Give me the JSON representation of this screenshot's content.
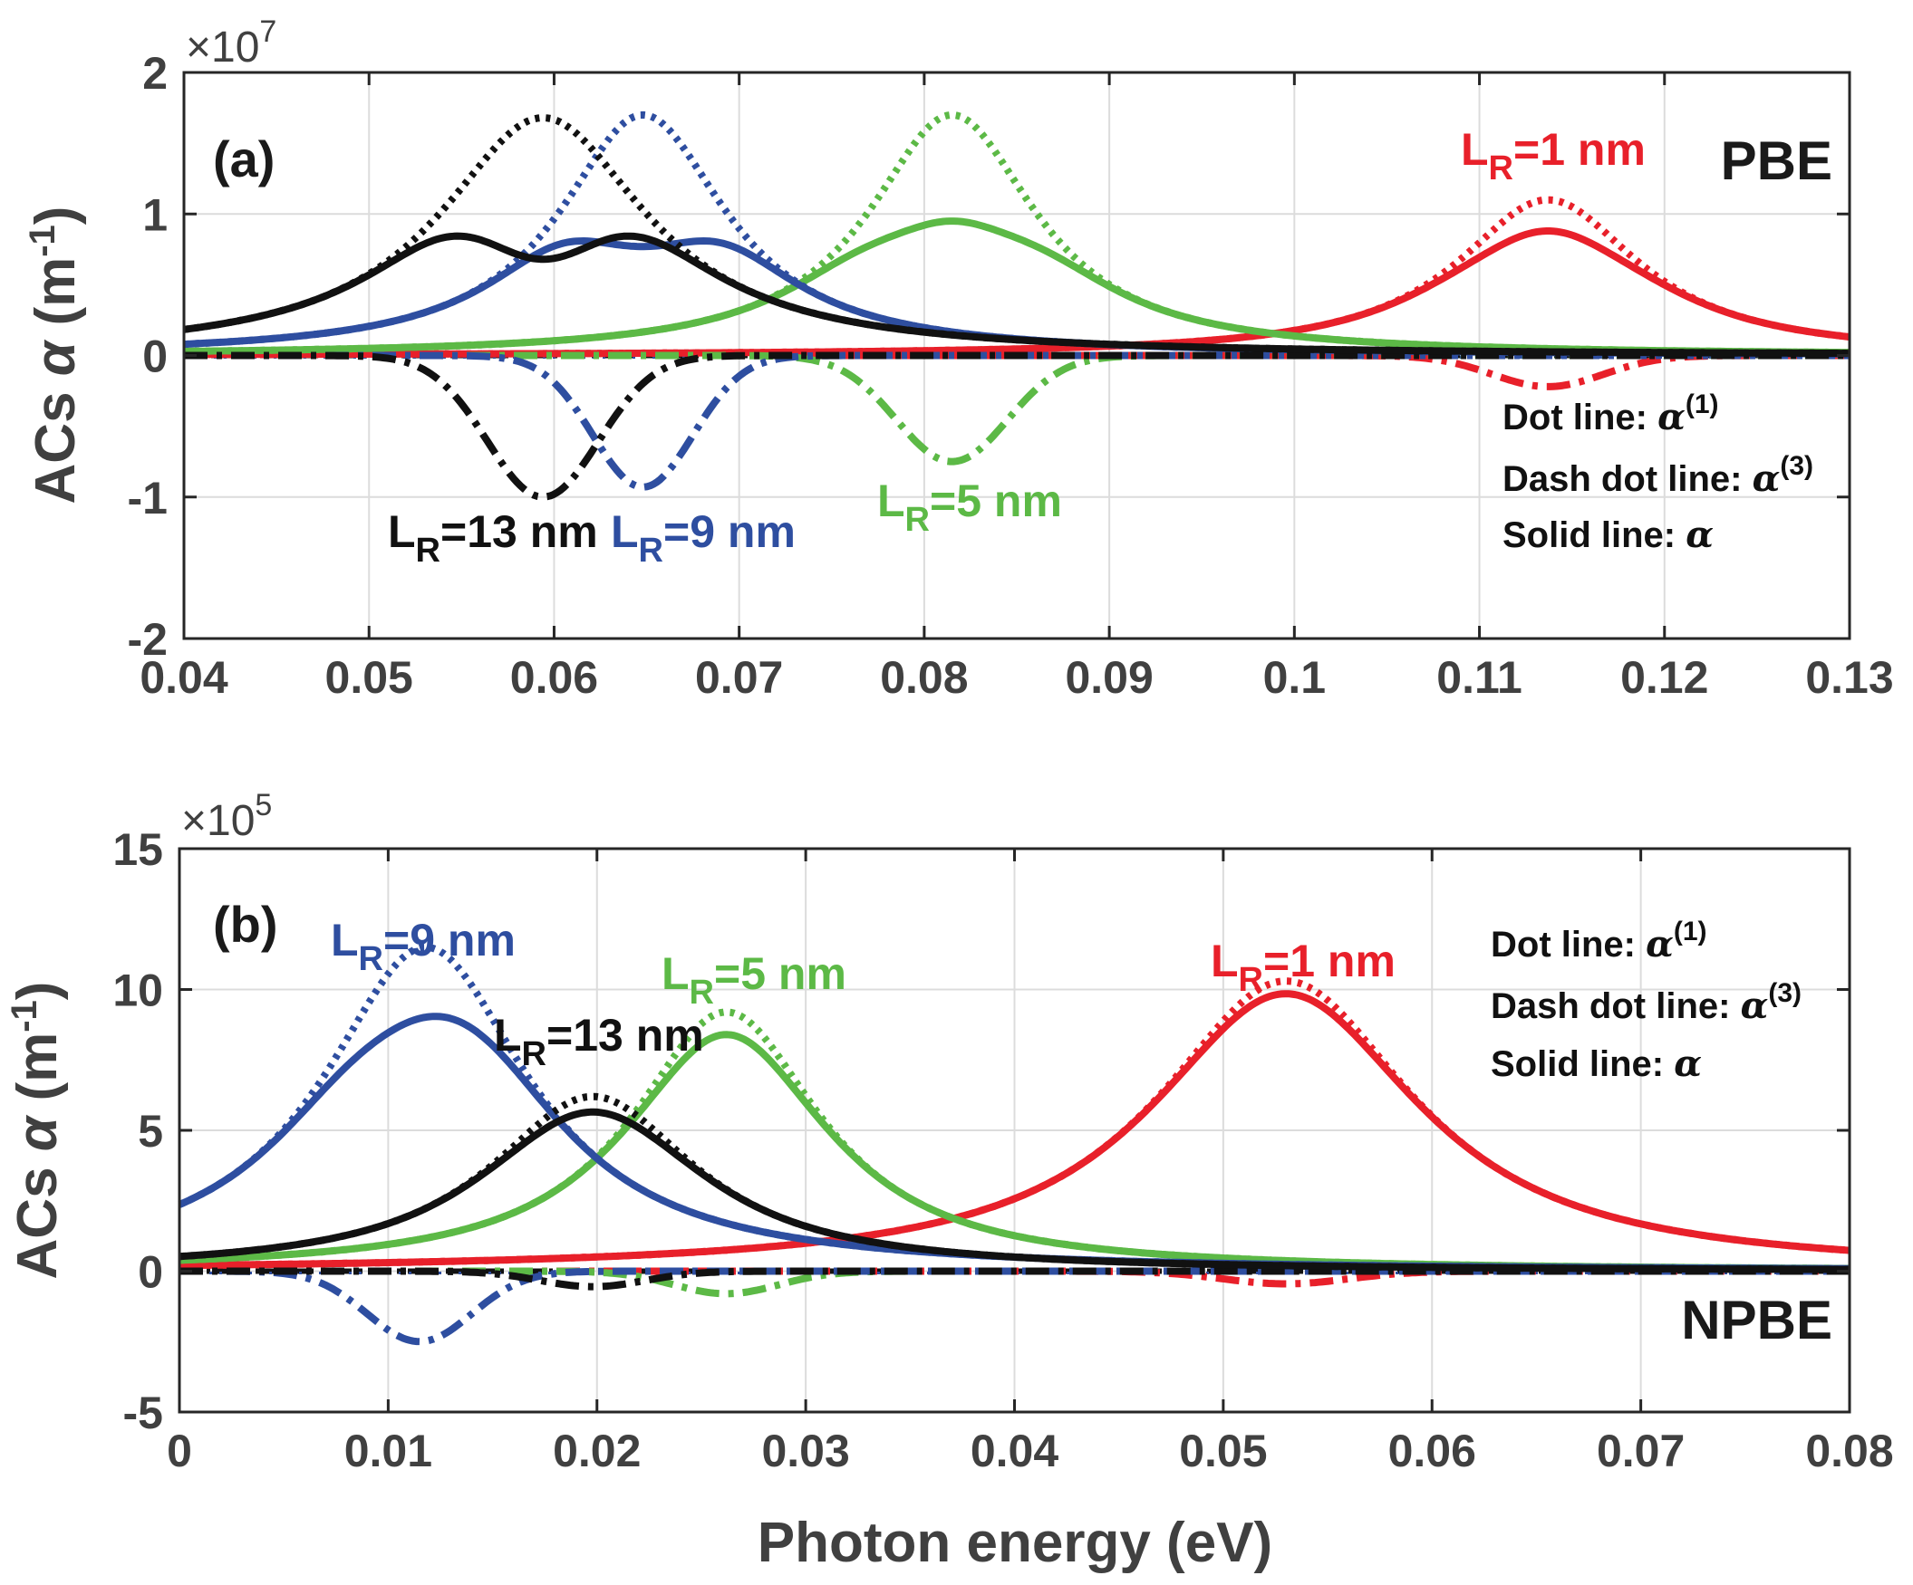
{
  "chart_data": [
    {
      "id": "a",
      "type": "line",
      "panel_label": "(a)",
      "method": "PBE",
      "xlabel": "",
      "ylabel": "ACs α (m⁻¹)",
      "ylabel_main": "ACs ",
      "ylabel_greek": "α",
      "ylabel_unit": " (m",
      "ylabel_sup": "-1",
      "ylabel_close": ")",
      "multiplier": "×10",
      "multiplier_exp": "7",
      "xlim": [
        0.04,
        0.13
      ],
      "ylim": [
        -2,
        2
      ],
      "xticks": [
        0.04,
        0.05,
        0.06,
        0.07,
        0.08,
        0.09,
        0.1,
        0.11,
        0.12,
        0.13
      ],
      "xtick_labels": [
        "0.04",
        "0.05",
        "0.06",
        "0.07",
        "0.08",
        "0.09",
        "0.1",
        "0.11",
        "0.12",
        "0.13"
      ],
      "yticks": [
        -2,
        -1,
        0,
        1,
        2
      ],
      "ytick_labels": [
        "-2",
        "-1",
        "0",
        "1",
        "2"
      ],
      "grid": true,
      "legend": {
        "dot": "Dot line: ",
        "dashdot": "Dash dot line: ",
        "solid": "Solid line: ",
        "sym": "α",
        "sup1": "(1)",
        "sup3": "(3)"
      },
      "series": [
        {
          "name": "L_R=1 nm",
          "label_main": "L",
          "label_sub": "R",
          "label_rest": "=1 nm",
          "color": "#e8202a",
          "lorentz": [
            [
              0.1137,
              1.1,
              0.006
            ]
          ],
          "gauss": [
            [
              0.1137,
              0.22,
              0.003
            ]
          ]
        },
        {
          "name": "L_R=5 nm",
          "label_main": "L",
          "label_sub": "R",
          "label_rest": "=5 nm",
          "color": "#5cb946",
          "lorentz": [
            [
              0.0815,
              1.7,
              0.0055
            ]
          ],
          "gauss": [
            [
              0.0815,
              0.75,
              0.003
            ]
          ]
        },
        {
          "name": "L_R=9 nm",
          "label_main": "L",
          "label_sub": "R",
          "label_rest": "=9 nm",
          "color": "#2e4ea0",
          "lorentz": [
            [
              0.0648,
              1.7,
              0.0055
            ]
          ],
          "gauss": [
            [
              0.0648,
              0.93,
              0.0027
            ]
          ]
        },
        {
          "name": "L_R=13 nm",
          "label_main": "L",
          "label_sub": "R",
          "label_rest": "=13 nm",
          "color": "#111111",
          "lorentz": [
            [
              0.0594,
              1.68,
              0.0068
            ]
          ],
          "gauss": [
            [
              0.0594,
              1.0,
              0.003
            ]
          ]
        }
      ]
    },
    {
      "id": "b",
      "type": "line",
      "panel_label": "(b)",
      "method": "NPBE",
      "xlabel": "Photon energy (eV)",
      "ylabel": "ACs α (m⁻¹)",
      "ylabel_main": "ACs ",
      "ylabel_greek": "α",
      "ylabel_unit": " (m",
      "ylabel_sup": "-1",
      "ylabel_close": ")",
      "multiplier": "×10",
      "multiplier_exp": "5",
      "xlim": [
        0,
        0.08
      ],
      "ylim": [
        -5,
        15
      ],
      "xticks": [
        0,
        0.01,
        0.02,
        0.03,
        0.04,
        0.05,
        0.06,
        0.07,
        0.08
      ],
      "xtick_labels": [
        "0",
        "0.01",
        "0.02",
        "0.03",
        "0.04",
        "0.05",
        "0.06",
        "0.07",
        "0.08"
      ],
      "yticks": [
        -5,
        0,
        5,
        10,
        15
      ],
      "ytick_labels": [
        "-5",
        "0",
        "5",
        "10",
        "15"
      ],
      "grid": true,
      "legend": {
        "dot": "Dot line: ",
        "dashdot": "Dash dot line: ",
        "solid": "Solid line: ",
        "sym": "α",
        "sup1": "(1)",
        "sup3": "(3)"
      },
      "series": [
        {
          "name": "L_R=1 nm",
          "label_main": "L",
          "label_sub": "R",
          "label_rest": "=1 nm",
          "color": "#e8202a",
          "lorentz": [
            [
              0.053,
              10.3,
              0.0075
            ]
          ],
          "gauss": [
            [
              0.053,
              0.45,
              0.003
            ]
          ]
        },
        {
          "name": "L_R=5 nm",
          "label_main": "L",
          "label_sub": "R",
          "label_rest": "=5 nm",
          "color": "#5cb946",
          "lorentz": [
            [
              0.0262,
              9.2,
              0.0055
            ]
          ],
          "gauss": [
            [
              0.0262,
              0.8,
              0.0025
            ]
          ]
        },
        {
          "name": "L_R=9 nm",
          "label_main": "L",
          "label_sub": "R",
          "label_rest": "=9 nm",
          "color": "#2e4ea0",
          "lorentz": [
            [
              0.0118,
              11.5,
              0.006
            ]
          ],
          "gauss": [
            [
              0.0115,
              2.5,
              0.0025
            ]
          ]
        },
        {
          "name": "L_R=13 nm",
          "label_main": "L",
          "label_sub": "R",
          "label_rest": "=13 nm",
          "color": "#111111",
          "lorentz": [
            [
              0.0198,
              6.2,
              0.006
            ]
          ],
          "gauss": [
            [
              0.0198,
              0.55,
              0.0025
            ]
          ]
        }
      ]
    }
  ]
}
